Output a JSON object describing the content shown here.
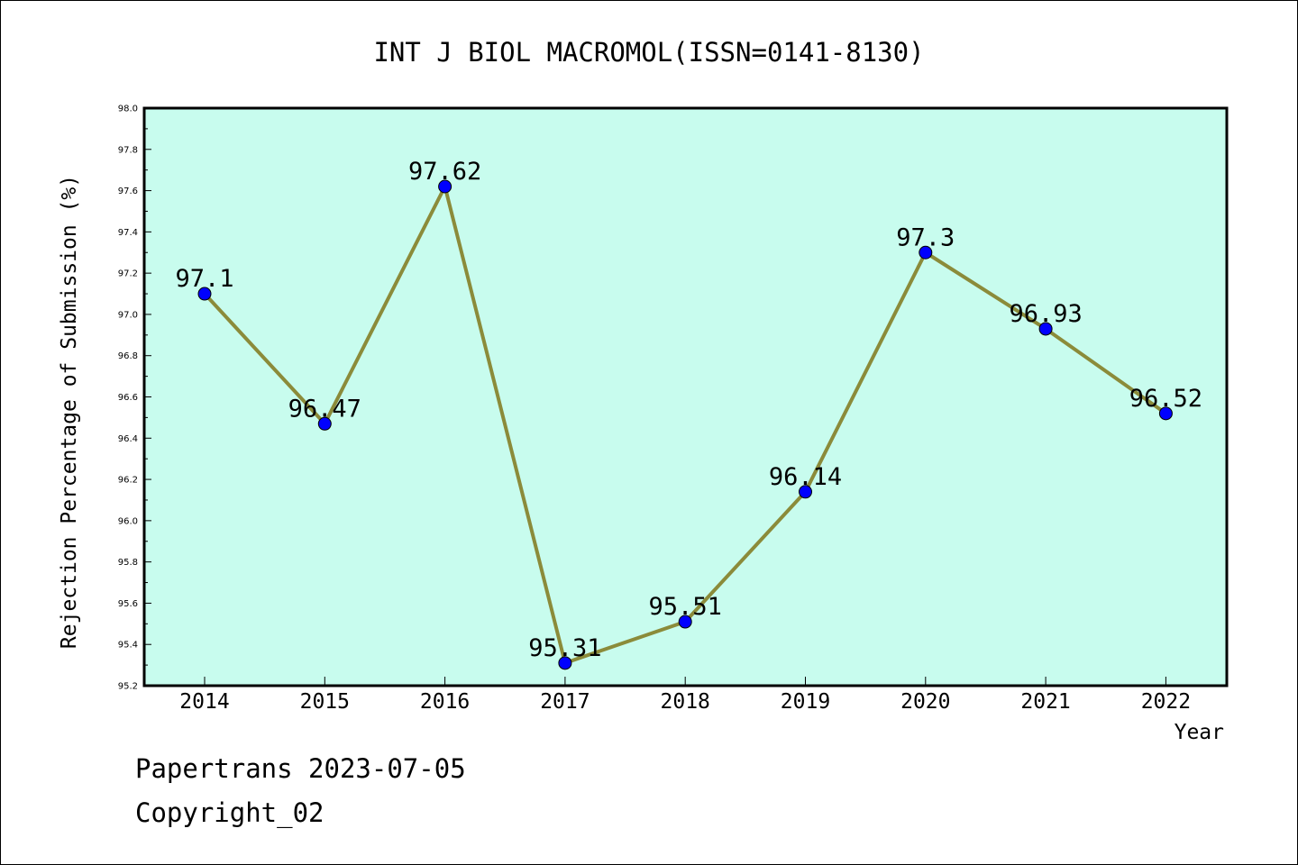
{
  "chart_data": {
    "type": "line",
    "title": "INT J BIOL MACROMOL(ISSN=0141-8130)",
    "xlabel": "Year",
    "ylabel": "Rejection Percentage of Submission (%)",
    "categories": [
      "2014",
      "2015",
      "2016",
      "2017",
      "2018",
      "2019",
      "2020",
      "2021",
      "2022"
    ],
    "series": [
      {
        "values": [
          97.1,
          96.47,
          97.62,
          95.31,
          95.51,
          96.14,
          97.3,
          96.93,
          96.52
        ],
        "labels": [
          "97.1",
          "96.47",
          "97.62",
          "95.31",
          "95.51",
          "96.14",
          "97.3",
          "96.93",
          "96.52"
        ]
      }
    ],
    "ylim": [
      95.2,
      98.0
    ],
    "yticks": [
      "95.2",
      "95.4",
      "95.6",
      "95.8",
      "96.0",
      "96.2",
      "96.4",
      "96.6",
      "96.8",
      "97.0",
      "97.2",
      "97.4",
      "97.6",
      "97.8",
      "98.0"
    ],
    "grid": false,
    "colors": {
      "plot_background": "#c8fcee",
      "line": "#8b8b3a",
      "marker": "#0000ff"
    }
  },
  "footer": {
    "line1": "Papertrans 2023-07-05",
    "line2": "Copyright_02"
  }
}
